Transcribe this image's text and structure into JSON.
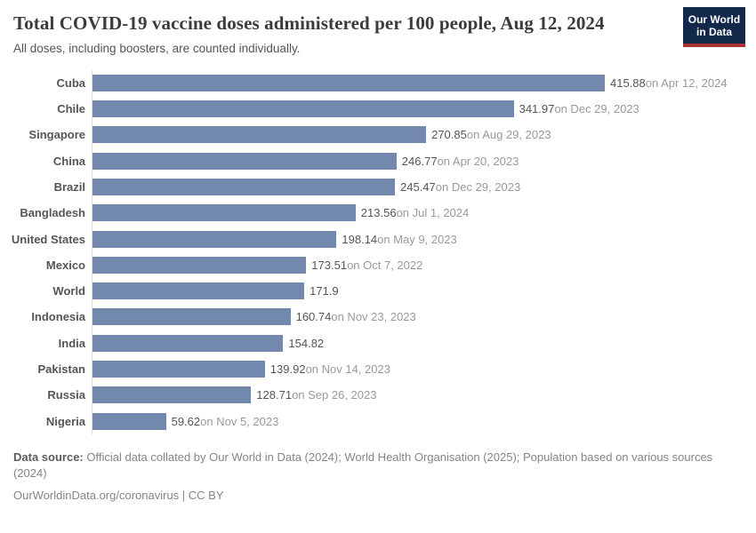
{
  "header": {
    "title": "Total COVID-19 vaccine doses administered per 100 people, Aug 12, 2024",
    "subtitle": "All doses, including boosters, are counted individually.",
    "logo": {
      "line1": "Our World",
      "line2": "in Data",
      "bg_color": "#12294b",
      "stripe_color": "#a8352f"
    }
  },
  "chart_data": {
    "type": "bar",
    "orientation": "horizontal",
    "title": "Total COVID-19 vaccine doses administered per 100 people, Aug 12, 2024",
    "subtitle": "All doses, including boosters, are counted individually.",
    "xlabel": "",
    "ylabel": "",
    "xlim": [
      0,
      415.88
    ],
    "grid": false,
    "legend": false,
    "bar_color": "#7289ad",
    "axis_line_color": "#dddddd",
    "series": [
      {
        "label": "Cuba",
        "value": 415.88,
        "value_label": "415.88",
        "date_label": "on Apr 12, 2024"
      },
      {
        "label": "Chile",
        "value": 341.97,
        "value_label": "341.97",
        "date_label": "on Dec 29, 2023"
      },
      {
        "label": "Singapore",
        "value": 270.85,
        "value_label": "270.85",
        "date_label": "on Aug 29, 2023"
      },
      {
        "label": "China",
        "value": 246.77,
        "value_label": "246.77",
        "date_label": "on Apr 20, 2023"
      },
      {
        "label": "Brazil",
        "value": 245.47,
        "value_label": "245.47",
        "date_label": "on Dec 29, 2023"
      },
      {
        "label": "Bangladesh",
        "value": 213.56,
        "value_label": "213.56",
        "date_label": "on Jul 1, 2024"
      },
      {
        "label": "United States",
        "value": 198.14,
        "value_label": "198.14",
        "date_label": "on May 9, 2023"
      },
      {
        "label": "Mexico",
        "value": 173.51,
        "value_label": "173.51",
        "date_label": "on Oct 7, 2022"
      },
      {
        "label": "World",
        "value": 171.9,
        "value_label": "171.9",
        "date_label": ""
      },
      {
        "label": "Indonesia",
        "value": 160.74,
        "value_label": "160.74",
        "date_label": "on Nov 23, 2023"
      },
      {
        "label": "India",
        "value": 154.82,
        "value_label": "154.82",
        "date_label": ""
      },
      {
        "label": "Pakistan",
        "value": 139.92,
        "value_label": "139.92",
        "date_label": "on Nov 14, 2023"
      },
      {
        "label": "Russia",
        "value": 128.71,
        "value_label": "128.71",
        "date_label": "on Sep 26, 2023"
      },
      {
        "label": "Nigeria",
        "value": 59.62,
        "value_label": "59.62",
        "date_label": "on Nov 5, 2023"
      }
    ]
  },
  "footer": {
    "source_label": "Data source:",
    "source_text": " Official data collated by Our World in Data (2024); World Health Organisation (2025); Population based on various sources (2024)",
    "url": "OurWorldinData.org/coronavirus",
    "divider": " | ",
    "license": "CC BY"
  }
}
